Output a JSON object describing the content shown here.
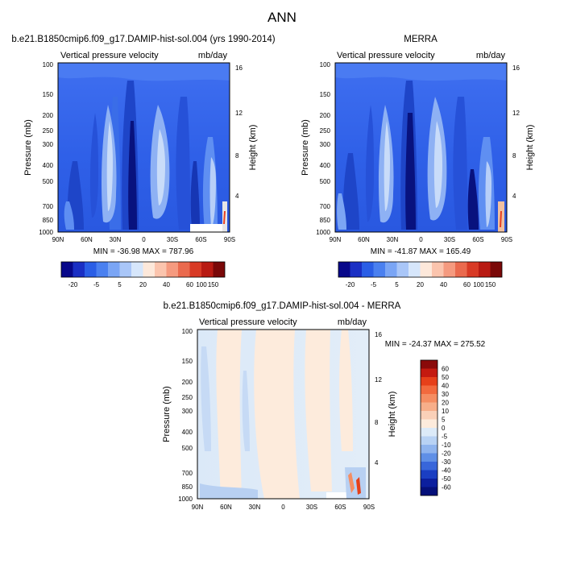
{
  "figure": {
    "title": "ANN"
  },
  "chart_data": [
    {
      "type": "heatmap",
      "title": "b.e21.B1850cmip6.f09_g17.DAMIP-hist-sol.004 (yrs 1990-2014)",
      "left_label": "Vertical pressure velocity",
      "right_label": "mb/day",
      "ylabel": "Pressure (mb)",
      "ylabel_right": "Height (km)",
      "x_ticks": [
        "90N",
        "60N",
        "30N",
        "0",
        "30S",
        "60S",
        "90S"
      ],
      "y_ticks": [
        "100",
        "150",
        "200",
        "250",
        "300",
        "400",
        "500",
        "700",
        "850",
        "1000"
      ],
      "height_ticks": [
        "16",
        "12",
        "8",
        "4"
      ],
      "stats": "MIN = -36.98  MAX = 787.96",
      "colorbar_labels": [
        "-20",
        "-5",
        "5",
        "20",
        "40",
        "60",
        "100",
        "150"
      ],
      "colorbar_colors": [
        "#08088a",
        "#1a2fc4",
        "#2a5ee6",
        "#4a80f0",
        "#7aa5f5",
        "#a9c6f8",
        "#d6e6fb",
        "#fde8da",
        "#fbc4ad",
        "#f59a7f",
        "#ea6a4e",
        "#d83a25",
        "#b81a12",
        "#7a0808"
      ]
    },
    {
      "type": "heatmap",
      "title": "MERRA",
      "left_label": "Vertical pressure velocity",
      "right_label": "mb/day",
      "ylabel": "Pressure (mb)",
      "ylabel_right": "Height (km)",
      "x_ticks": [
        "90N",
        "60N",
        "30N",
        "0",
        "30S",
        "60S",
        "90S"
      ],
      "y_ticks": [
        "100",
        "150",
        "200",
        "250",
        "300",
        "400",
        "500",
        "700",
        "850",
        "1000"
      ],
      "height_ticks": [
        "16",
        "12",
        "8",
        "4"
      ],
      "stats": "MIN = -41.87  MAX = 165.49",
      "colorbar_labels": [
        "-20",
        "-5",
        "5",
        "20",
        "40",
        "60",
        "100",
        "150"
      ],
      "colorbar_colors": [
        "#08088a",
        "#1a2fc4",
        "#2a5ee6",
        "#4a80f0",
        "#7aa5f5",
        "#a9c6f8",
        "#d6e6fb",
        "#fde8da",
        "#fbc4ad",
        "#f59a7f",
        "#ea6a4e",
        "#d83a25",
        "#b81a12",
        "#7a0808"
      ]
    },
    {
      "type": "heatmap",
      "title": "b.e21.B1850cmip6.f09_g17.DAMIP-hist-sol.004 - MERRA",
      "left_label": "Vertical pressure velocity",
      "right_label": "mb/day",
      "ylabel": "Pressure (mb)",
      "ylabel_right": "Height (km)",
      "x_ticks": [
        "90N",
        "60N",
        "30N",
        "0",
        "30S",
        "60S",
        "90S"
      ],
      "y_ticks": [
        "100",
        "150",
        "200",
        "250",
        "300",
        "400",
        "500",
        "700",
        "850",
        "1000"
      ],
      "height_ticks": [
        "16",
        "12",
        "8",
        "4"
      ],
      "stats": "MIN = -24.37  MAX = 275.52",
      "colorbar_labels": [
        "60",
        "50",
        "40",
        "30",
        "20",
        "10",
        "5",
        "0",
        "-5",
        "-10",
        "-20",
        "-30",
        "-40",
        "-50",
        "-60"
      ],
      "colorbar_colors": [
        "#8a0a0a",
        "#c41a10",
        "#e6401a",
        "#f26a3e",
        "#f58d62",
        "#f7ae8a",
        "#fad0b8",
        "#fdebdc",
        "#dceaf8",
        "#b8d2f4",
        "#8fb4ee",
        "#5f8fe6",
        "#3866da",
        "#1a3ec2",
        "#0c1f9e",
        "#05107a"
      ]
    }
  ]
}
